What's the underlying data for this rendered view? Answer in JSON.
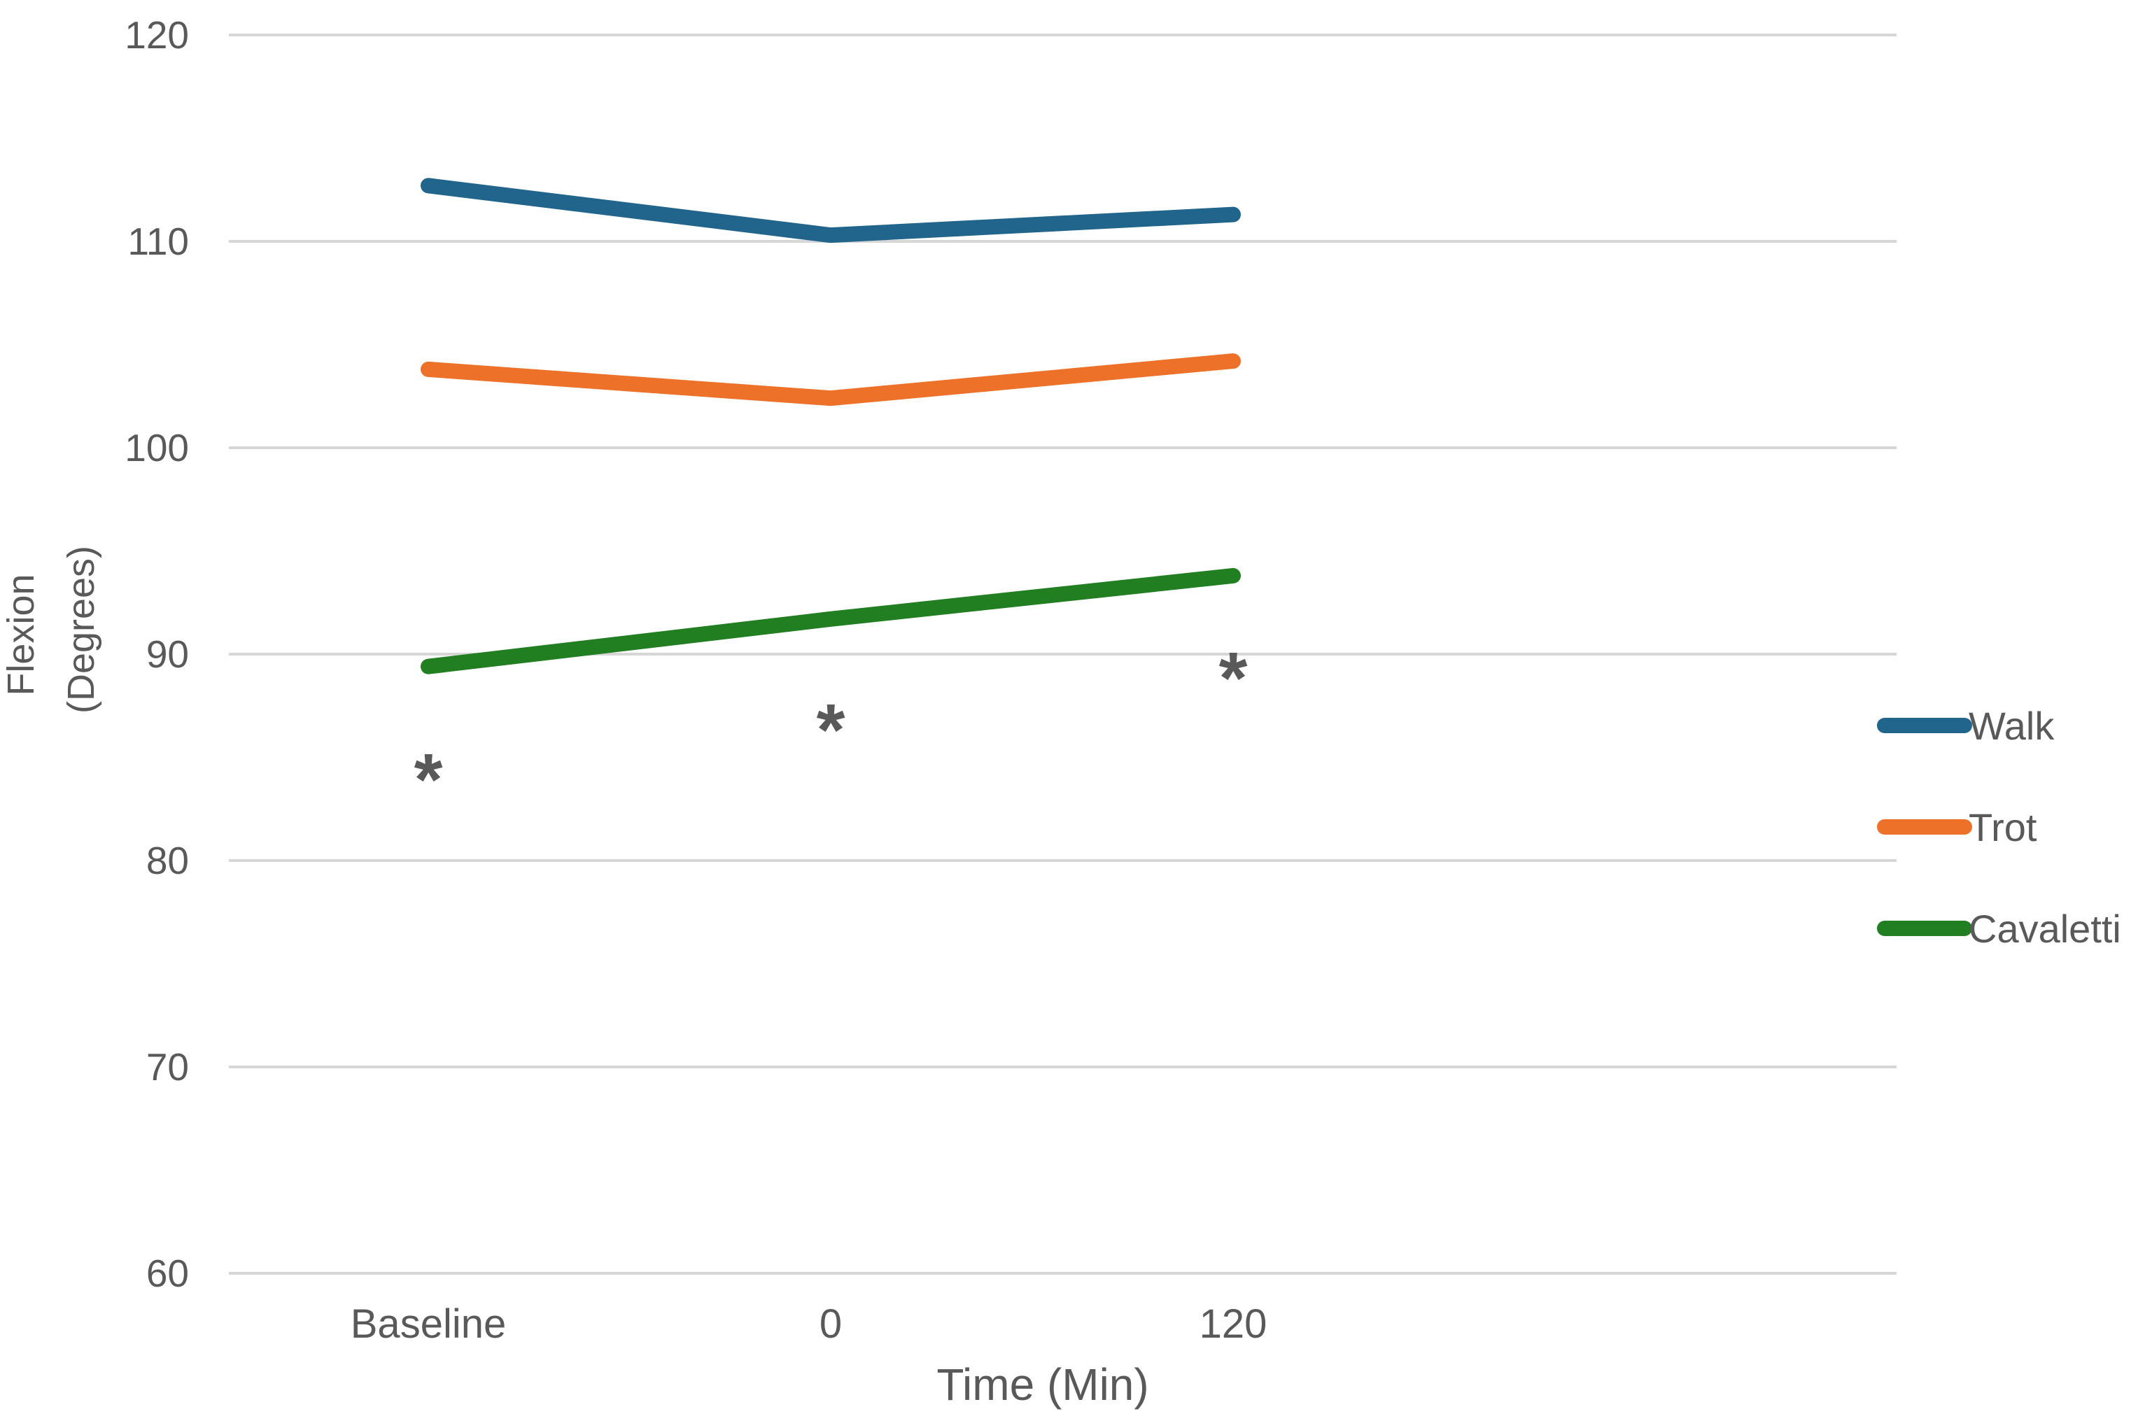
{
  "chart_data": {
    "type": "line",
    "title": "",
    "xlabel": "Time (Min)",
    "ylabel": "Flexion (Degrees)",
    "ylabel_lines": [
      "Flexion",
      "(Degrees)"
    ],
    "categories": [
      "Baseline",
      "0",
      "120"
    ],
    "yticks": [
      120,
      110,
      100,
      90,
      80,
      70,
      60
    ],
    "ylim": [
      60,
      120
    ],
    "grid": "horizontal-only",
    "legend_position": "right",
    "series": [
      {
        "name": "Walk",
        "color": "#21658D",
        "values": [
          112.7,
          110.3,
          111.3
        ]
      },
      {
        "name": "Trot",
        "color": "#ED7128",
        "values": [
          103.8,
          102.4,
          104.2
        ]
      },
      {
        "name": "Cavaletti",
        "color": "#217E21",
        "values": [
          89.4,
          91.7,
          93.8
        ]
      }
    ],
    "annotations": [
      {
        "symbol": "*",
        "category": "Baseline",
        "value": 84.5
      },
      {
        "symbol": "*",
        "category": "0",
        "value": 86.9
      },
      {
        "symbol": "*",
        "category": "120",
        "value": 89.4
      }
    ],
    "colors": {
      "text": "#595959",
      "gridline": "#D6D6D6",
      "annotation": "#000000",
      "background": "#FFFFFF"
    }
  }
}
